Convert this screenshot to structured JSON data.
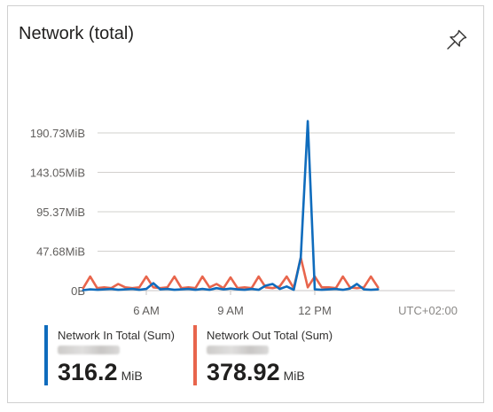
{
  "card": {
    "title": "Network (total)",
    "pin_icon": "pin-icon"
  },
  "chart_data": {
    "type": "line",
    "title": "Network (total)",
    "y_unit": "MiB",
    "ylim": [
      0,
      200
    ],
    "y_ticks": [
      {
        "value": 0,
        "label": "0B"
      },
      {
        "value": 47.68,
        "label": "47.68MiB"
      },
      {
        "value": 95.37,
        "label": "95.37MiB"
      },
      {
        "value": 143.05,
        "label": "143.05MiB"
      },
      {
        "value": 190.73,
        "label": "190.73MiB"
      }
    ],
    "x_range_hours": [
      3.0,
      14.25
    ],
    "x_ticks": [
      {
        "value": 6,
        "label": "6 AM"
      },
      {
        "value": 9,
        "label": "9 AM"
      },
      {
        "value": 12,
        "label": "12 PM"
      }
    ],
    "timezone": "UTC+02:00",
    "grid": true,
    "series": [
      {
        "name": "Network In Total (Sum)",
        "color": "#0f6cbd",
        "points": [
          [
            3.75,
            0.5
          ],
          [
            4.0,
            1.5
          ],
          [
            4.25,
            1.0
          ],
          [
            4.5,
            1.5
          ],
          [
            4.75,
            2.0
          ],
          [
            5.0,
            1.0
          ],
          [
            5.25,
            1.5
          ],
          [
            5.5,
            2.0
          ],
          [
            5.75,
            1.0
          ],
          [
            6.0,
            2.0
          ],
          [
            6.25,
            9.0
          ],
          [
            6.5,
            1.5
          ],
          [
            6.75,
            2.0
          ],
          [
            7.0,
            1.0
          ],
          [
            7.25,
            1.5
          ],
          [
            7.5,
            2.0
          ],
          [
            7.75,
            1.0
          ],
          [
            8.0,
            2.0
          ],
          [
            8.25,
            1.0
          ],
          [
            8.5,
            3.0
          ],
          [
            8.75,
            1.5
          ],
          [
            9.0,
            2.5
          ],
          [
            9.25,
            1.5
          ],
          [
            9.5,
            1.0
          ],
          [
            9.75,
            2.0
          ],
          [
            10.0,
            1.0
          ],
          [
            10.25,
            6.0
          ],
          [
            10.5,
            8.0
          ],
          [
            10.75,
            2.0
          ],
          [
            11.0,
            5.0
          ],
          [
            11.25,
            1.0
          ],
          [
            11.5,
            40.0
          ],
          [
            11.75,
            205.0
          ],
          [
            12.0,
            1.5
          ],
          [
            12.25,
            1.0
          ],
          [
            12.5,
            1.5
          ],
          [
            12.75,
            2.0
          ],
          [
            13.0,
            1.0
          ],
          [
            13.25,
            2.5
          ],
          [
            13.5,
            8.0
          ],
          [
            13.75,
            1.5
          ],
          [
            14.0,
            1.0
          ],
          [
            14.25,
            1.5
          ]
        ],
        "total": "316.2",
        "total_unit": "MiB"
      },
      {
        "name": "Network Out Total (Sum)",
        "color": "#e8654c",
        "points": [
          [
            3.75,
            3.0
          ],
          [
            4.0,
            17.0
          ],
          [
            4.25,
            3.0
          ],
          [
            4.5,
            4.0
          ],
          [
            4.75,
            3.0
          ],
          [
            5.0,
            8.0
          ],
          [
            5.25,
            4.0
          ],
          [
            5.5,
            3.0
          ],
          [
            5.75,
            4.0
          ],
          [
            6.0,
            17.0
          ],
          [
            6.25,
            4.0
          ],
          [
            6.5,
            3.0
          ],
          [
            6.75,
            4.0
          ],
          [
            7.0,
            17.0
          ],
          [
            7.25,
            3.0
          ],
          [
            7.5,
            4.0
          ],
          [
            7.75,
            3.0
          ],
          [
            8.0,
            17.0
          ],
          [
            8.25,
            4.0
          ],
          [
            8.5,
            8.0
          ],
          [
            8.75,
            3.0
          ],
          [
            9.0,
            16.0
          ],
          [
            9.25,
            3.0
          ],
          [
            9.5,
            4.0
          ],
          [
            9.75,
            3.0
          ],
          [
            10.0,
            17.0
          ],
          [
            10.25,
            4.0
          ],
          [
            10.5,
            3.0
          ],
          [
            10.75,
            5.0
          ],
          [
            11.0,
            17.0
          ],
          [
            11.25,
            3.0
          ],
          [
            11.5,
            40.0
          ],
          [
            11.75,
            4.0
          ],
          [
            12.0,
            17.0
          ],
          [
            12.25,
            4.0
          ],
          [
            12.5,
            4.0
          ],
          [
            12.75,
            3.0
          ],
          [
            13.0,
            17.0
          ],
          [
            13.25,
            4.0
          ],
          [
            13.5,
            3.0
          ],
          [
            13.75,
            4.0
          ],
          [
            14.0,
            17.0
          ],
          [
            14.25,
            4.0
          ]
        ],
        "total": "378.92",
        "total_unit": "MiB"
      }
    ]
  }
}
